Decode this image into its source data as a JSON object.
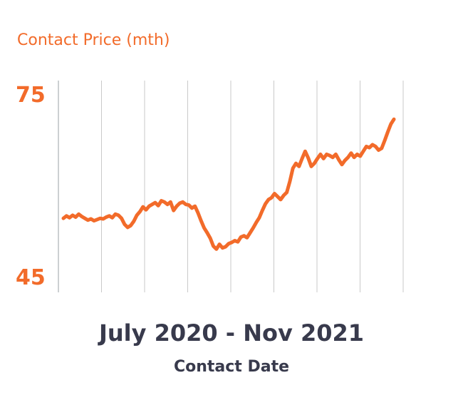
{
  "chart_data": {
    "type": "line",
    "ylabel": "Contact Price (mth)",
    "xlabel": "Contact Date",
    "x_range_label": "July 2020 - Nov 2021",
    "y_ticks": [
      "75",
      "45"
    ],
    "ylim": [
      45,
      75
    ],
    "grid": "vertical",
    "series": [
      {
        "color": "#f26b2a",
        "values": [
          54.9,
          55.3,
          55.0,
          55.4,
          55.1,
          55.6,
          55.2,
          54.9,
          54.6,
          54.8,
          54.5,
          54.7,
          54.9,
          54.8,
          55.1,
          55.3,
          55.0,
          55.6,
          55.4,
          54.9,
          53.9,
          53.4,
          53.7,
          54.4,
          55.4,
          56.0,
          56.8,
          56.3,
          56.9,
          57.2,
          57.5,
          57.0,
          57.8,
          57.6,
          57.2,
          57.6,
          56.2,
          56.9,
          57.4,
          57.6,
          57.2,
          57.1,
          56.6,
          56.9,
          55.8,
          54.5,
          53.3,
          52.5,
          51.6,
          50.3,
          49.8,
          50.6,
          50.0,
          50.2,
          50.7,
          50.9,
          51.2,
          51.0,
          51.8,
          52.0,
          51.7,
          52.5,
          53.3,
          54.2,
          55.0,
          56.2,
          57.3,
          58.0,
          58.3,
          59.0,
          58.5,
          58.0,
          58.7,
          59.2,
          61.0,
          63.2,
          64.0,
          63.5,
          64.8,
          66.0,
          64.9,
          63.5,
          64.0,
          64.8,
          65.5,
          64.8,
          65.5,
          65.3,
          65.0,
          65.5,
          64.6,
          63.8,
          64.5,
          65.0,
          65.7,
          65.0,
          65.5,
          65.2,
          66.0,
          66.8,
          66.6,
          67.1,
          66.8,
          66.2,
          66.5,
          67.8,
          69.2,
          70.5,
          71.3
        ]
      }
    ]
  }
}
